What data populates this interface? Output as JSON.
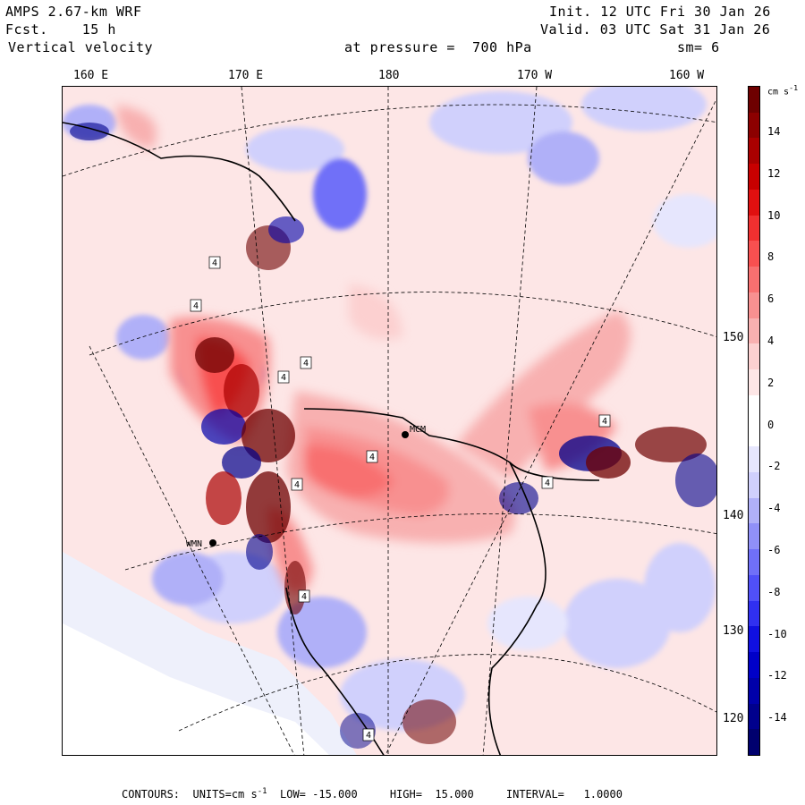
{
  "header": {
    "model": "AMPS 2.67-km WRF",
    "init": "Init. 12 UTC Fri 30 Jan 26",
    "fcst": "Fcst.    15 h",
    "valid": "Valid. 03 UTC Sat 31 Jan 26",
    "field": "Vertical velocity",
    "level": "at pressure =  700 hPa",
    "smooth": "sm= 6"
  },
  "lon_labels": [
    "160 E",
    "170 E",
    "180",
    "170 W",
    "160 W"
  ],
  "lat_labels": [
    "150 W",
    "140 W",
    "130 W",
    "120 W"
  ],
  "stations": [
    "MCM",
    "WMN"
  ],
  "box_label": "4",
  "colorbar": {
    "units": "cm s",
    "units_exp": "-1",
    "ticks": [
      "14",
      "12",
      "10",
      "8",
      "6",
      "4",
      "2",
      "0",
      "-2",
      "-4",
      "-6",
      "-8",
      "-10",
      "-12",
      "-14"
    ],
    "colors": [
      "#6e0000",
      "#8c0000",
      "#aa0000",
      "#c80000",
      "#e01010",
      "#f03030",
      "#f85050",
      "#f87070",
      "#f89090",
      "#f8b0b0",
      "#fcd0d0",
      "#fde6e6",
      "#ffffff",
      "#ffffff",
      "#e6e6fd",
      "#d0d0fc",
      "#b0b0f8",
      "#9090f8",
      "#7070f8",
      "#5050f8",
      "#3030f0",
      "#1010e0",
      "#0000c8",
      "#0000aa",
      "#00008c",
      "#00006e"
    ]
  },
  "footer": {
    "text": "CONTOURS:  UNITS=cm s",
    "exp": "-1",
    "rest": "  LOW= -15.000     HIGH=  15.000     INTERVAL=   1.0000"
  }
}
